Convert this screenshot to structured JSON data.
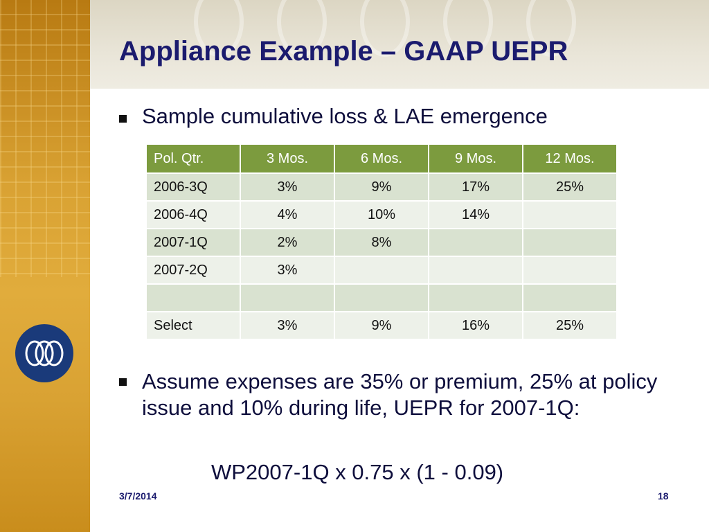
{
  "slide": {
    "title": "Appliance Example – GAAP UEPR",
    "bullet1": "Sample cumulative loss & LAE emergence",
    "bullet2": "Assume expenses are 35% or premium, 25% at policy issue and 10% during life, UEPR for 2007-1Q:",
    "formula": "WP2007-1Q x 0.75 x (1 - 0.09)",
    "date": "3/7/2014",
    "page": "18"
  },
  "table": {
    "headers": [
      "Pol. Qtr.",
      "3 Mos.",
      "6 Mos.",
      "9 Mos.",
      "12 Mos."
    ],
    "rows": [
      [
        "2006-3Q",
        "3%",
        "9%",
        "17%",
        "25%"
      ],
      [
        "2006-4Q",
        "4%",
        "10%",
        "14%",
        ""
      ],
      [
        "2007-1Q",
        "2%",
        "8%",
        "",
        ""
      ],
      [
        "2007-2Q",
        "3%",
        "",
        "",
        ""
      ],
      [
        "",
        "",
        "",
        "",
        ""
      ],
      [
        "Select",
        "3%",
        "9%",
        "16%",
        "25%"
      ]
    ]
  },
  "colors": {
    "header_green": "#7c9b3e",
    "title_navy": "#1b1b6e",
    "logo_blue": "#1a3a7a",
    "sidebar_gold": "#d9a233"
  },
  "icons": {
    "logo": "interlocked-rings-logo-icon",
    "bullet": "square-bullet-icon"
  }
}
